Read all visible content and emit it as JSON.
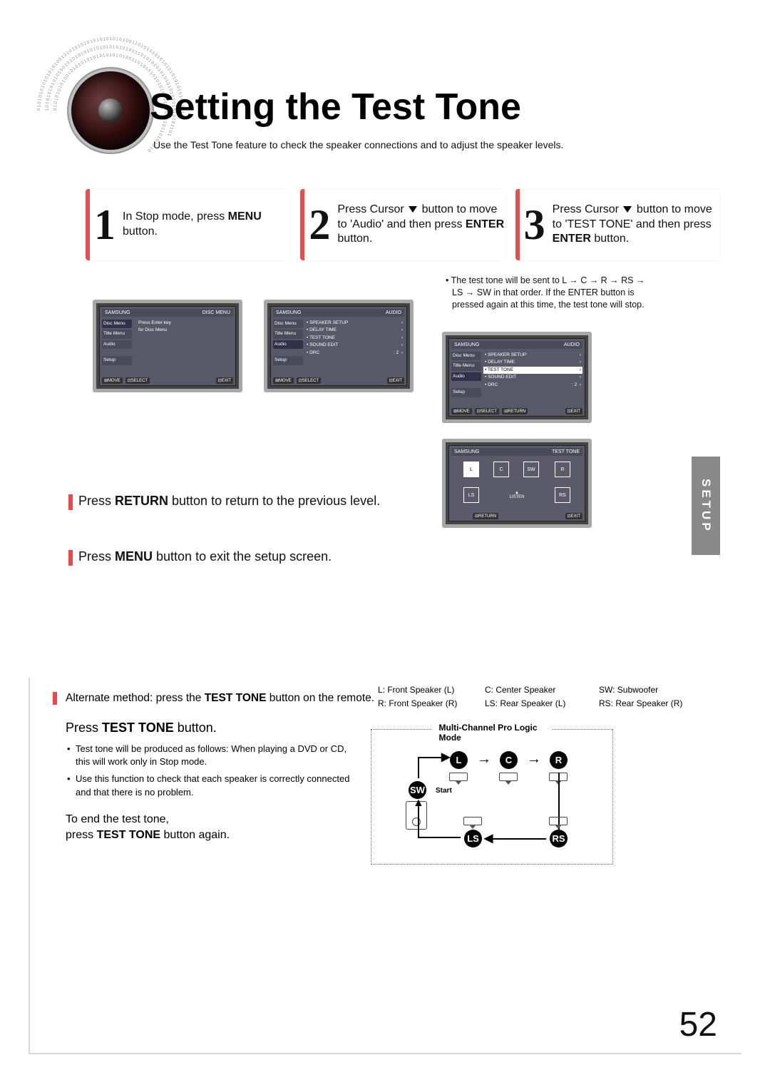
{
  "title": "Setting the Test Tone",
  "subtitle": "Use the Test Tone feature to check the speaker connections and to adjust the speaker levels.",
  "steps": {
    "s1": {
      "num": "1",
      "text": "In Stop mode, press <b>MENU</b> button."
    },
    "s2": {
      "num": "2",
      "text": "Press Cursor <span class='arrow-down'></span> button to move to 'Audio' and then press <b>ENTER</b> button."
    },
    "s3": {
      "num": "3",
      "text": "Press Cursor <span class='arrow-down'></span> button to move to 'TEST TONE' and then press <b>ENTER</b> button."
    }
  },
  "step3_note": "• The test tone will be sent to L → C → R → RS → LS → SW in that order. If the ENTER button is pressed again at this time, the test tone will stop.",
  "return_line": "Press <b>RETURN</b> button to return to the previous level.",
  "menu_line": "Press <b>MENU</b> button to exit the setup screen.",
  "setup_tab": "SETUP",
  "alt_line": "Alternate method: press the <b>TEST TONE</b> button on the remote.",
  "legend": {
    "l": "L: Front Speaker (L)",
    "r": "R: Front Speaker (R)",
    "c": "C: Center Speaker",
    "ls": "LS: Rear Speaker (L)",
    "sw": "SW: Subwoofer",
    "rs": "RS: Rear Speaker (R)"
  },
  "press_tt": "Press <b>TEST TONE</b> button.",
  "bullets": {
    "b1": "Test tone will be produced as follows: When playing a DVD or CD, this will work only in Stop mode.",
    "b2": "Use this function to check that each speaker is correctly connected and that there is no problem."
  },
  "end_tt": "To end the test tone,<br>press <b>TEST TONE</b> button again.",
  "diagram": {
    "title": "Multi-Channel Pro Logic Mode",
    "L": "L",
    "C": "C",
    "R": "R",
    "SW": "SW",
    "LS": "LS",
    "RS": "RS",
    "start": "Start"
  },
  "osd": {
    "brand": "SAMSUNG",
    "disc_menu": "DISC MENU",
    "audio": "AUDIO",
    "test_tone": "TEST TONE",
    "side_disc": "Disc Menu",
    "side_title": "Title Menu",
    "side_audio": "Audio",
    "side_setup": "Setup",
    "msg1": "Press Enter key",
    "msg2": "for Disc Menu",
    "m_speaker": "• SPEAKER SETUP",
    "m_delay": "• DELAY TIME",
    "m_test": "• TEST TONE",
    "m_sound": "• SOUND EDIT",
    "m_drc": "• DRC",
    "drc_val": ": 2",
    "arrow": "›",
    "f_move": "⊞MOVE",
    "f_select": "⊡SELECT",
    "f_return": "⊟RETURN",
    "f_exit": "⊡EXIT",
    "spk_L": "L",
    "spk_C": "C",
    "spk_SW": "SW",
    "spk_R": "R",
    "spk_LS": "LS",
    "spk_RS": "RS"
  },
  "page_number": "52",
  "colors": {
    "accent": "#e94949",
    "osd_bg": "#585868",
    "tab": "#898989"
  }
}
